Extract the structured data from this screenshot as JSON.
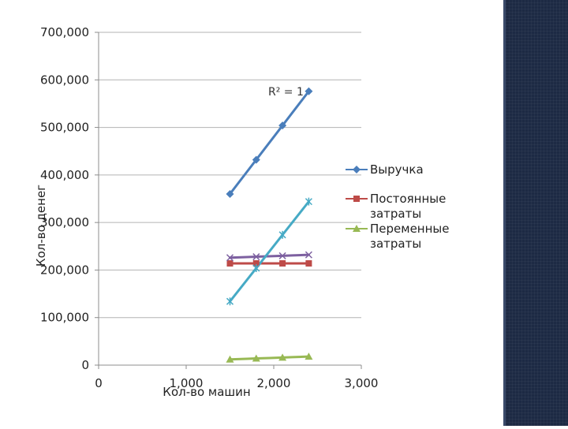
{
  "chart_data": {
    "type": "scatter",
    "xlabel": "Кол-во машин",
    "ylabel": "Кол-во денег",
    "xlim": [
      0,
      3000
    ],
    "ylim": [
      0,
      700000
    ],
    "x_ticks": [
      {
        "value": 0,
        "label": "0"
      },
      {
        "value": 1000,
        "label": "1,000"
      },
      {
        "value": 2000,
        "label": "2,000"
      },
      {
        "value": 3000,
        "label": "3,000"
      }
    ],
    "y_ticks": [
      {
        "value": 0,
        "label": "0"
      },
      {
        "value": 100000,
        "label": "100,000"
      },
      {
        "value": 200000,
        "label": "200,000"
      },
      {
        "value": 300000,
        "label": "300,000"
      },
      {
        "value": 400000,
        "label": "400,000"
      },
      {
        "value": 500000,
        "label": "500,000"
      },
      {
        "value": 600000,
        "label": "600,000"
      },
      {
        "value": 700000,
        "label": "700,000"
      }
    ],
    "grid": true,
    "legend_position": "right",
    "series": [
      {
        "name": "Выручка",
        "color": "#4a7ebb",
        "marker": "diamond",
        "in_legend": true,
        "x": [
          1500,
          1800,
          2100,
          2400
        ],
        "y": [
          360000,
          432000,
          504000,
          576000
        ]
      },
      {
        "name": "Постоянные затраты",
        "color": "#be4b48",
        "marker": "square",
        "in_legend": true,
        "x": [
          1500,
          1800,
          2100,
          2400
        ],
        "y": [
          214000,
          214000,
          214000,
          214000
        ]
      },
      {
        "name": "Переменные затраты",
        "color": "#98b954",
        "marker": "triangle",
        "in_legend": true,
        "x": [
          1500,
          1800,
          2100,
          2400
        ],
        "y": [
          12000,
          14000,
          16000,
          18000
        ]
      },
      {
        "color": "#7d60a0",
        "marker": "x",
        "in_legend": false,
        "x": [
          1500,
          1800,
          2100,
          2400
        ],
        "y": [
          226000,
          228000,
          230000,
          232000
        ]
      },
      {
        "color": "#46aac5",
        "marker": "star",
        "in_legend": false,
        "x": [
          1500,
          1800,
          2100,
          2400
        ],
        "y": [
          134000,
          204000,
          274000,
          344000
        ]
      }
    ],
    "annotations": [
      {
        "text": "R² = 1"
      }
    ]
  }
}
